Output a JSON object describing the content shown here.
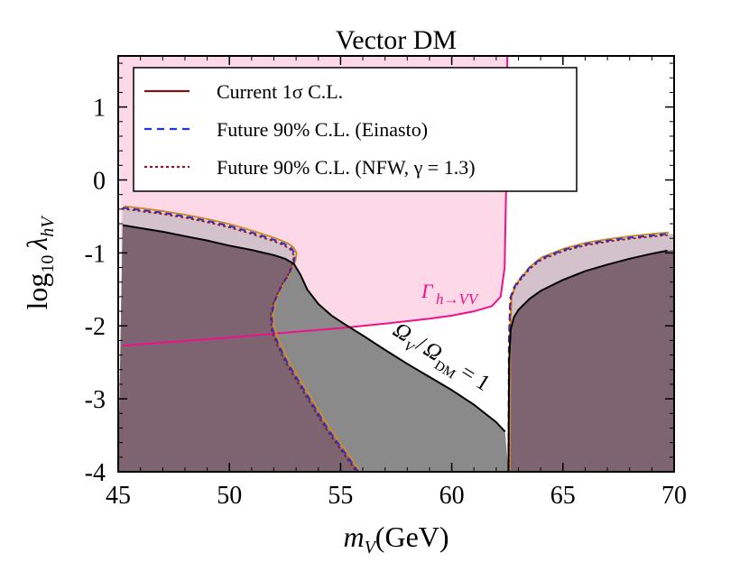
{
  "chart_data": {
    "type": "area",
    "title": "Vector DM",
    "xlabel": "m_V(GeV)",
    "ylabel": "log10 λ_hV",
    "xlim": [
      45,
      70
    ],
    "ylim": [
      -4,
      1.7
    ],
    "xticks": [
      45,
      50,
      55,
      60,
      65,
      70
    ],
    "xtick_labels": [
      "45",
      "50",
      "55",
      "60",
      "65",
      "70"
    ],
    "yticks": [
      -4,
      -3,
      -2,
      -1,
      0,
      1
    ],
    "ytick_labels": [
      "-4",
      "-3",
      "-2",
      "-1",
      "0",
      "1"
    ],
    "legend_position": "top-left",
    "legend": [
      {
        "label": "Current 1σ C.L.",
        "style": "solid",
        "color": "#6e1a1a"
      },
      {
        "label": "Future 90% C.L. (Einasto)",
        "style": "dashed",
        "color": "#2233dd"
      },
      {
        "label": "Future 90% C.L. (NFW, γ = 1.3)",
        "style": "dotted",
        "color": "#8b1a1a"
      }
    ],
    "annotations": {
      "width_label": "Γh→VV",
      "relic_label": "ΩV/ΩDM = 1"
    },
    "colors": {
      "current_region": "#7d6470",
      "future_region": "#d3c1cc",
      "relic_region": "#8a8a8a",
      "higgs_width_region": "#fdd9e8",
      "higgs_width_line": "#ee1188",
      "relic_line": "#000000",
      "future_einasto_line": "#2233dd",
      "future_nfw_line": "#8b1a1a",
      "future_outer_line": "#d08a2a"
    },
    "series": [
      {
        "name": "Current 1σ C.L. (left branch)",
        "points": [
          [
            45.2,
            -0.62
          ],
          [
            46,
            -0.66
          ],
          [
            47,
            -0.71
          ],
          [
            48,
            -0.77
          ],
          [
            49,
            -0.83
          ],
          [
            50,
            -0.9
          ],
          [
            51,
            -0.96
          ],
          [
            52,
            -1.03
          ],
          [
            52.5,
            -1.08
          ],
          [
            52.9,
            -1.15
          ],
          [
            53.2,
            -1.3
          ],
          [
            53.5,
            -1.5
          ],
          [
            54,
            -1.7
          ],
          [
            54.6,
            -1.86
          ],
          [
            55.2,
            -1.98
          ],
          [
            56,
            -2.13
          ],
          [
            57,
            -2.33
          ],
          [
            58,
            -2.52
          ],
          [
            59,
            -2.7
          ],
          [
            60,
            -2.88
          ],
          [
            61,
            -3.08
          ],
          [
            62,
            -3.32
          ],
          [
            62.4,
            -3.45
          ]
        ]
      },
      {
        "name": "Current 1σ C.L. (right branch)",
        "points": [
          [
            62.55,
            -4
          ],
          [
            62.58,
            -2.5
          ],
          [
            62.65,
            -2.05
          ],
          [
            62.8,
            -1.88
          ],
          [
            63,
            -1.78
          ],
          [
            63.5,
            -1.63
          ],
          [
            64,
            -1.52
          ],
          [
            65,
            -1.37
          ],
          [
            66,
            -1.25
          ],
          [
            67,
            -1.16
          ],
          [
            68,
            -1.08
          ],
          [
            69,
            -1.01
          ],
          [
            69.7,
            -0.97
          ]
        ]
      },
      {
        "name": "Future 90% C.L. (left branch)",
        "points": [
          [
            45.2,
            -0.38
          ],
          [
            46,
            -0.41
          ],
          [
            47,
            -0.45
          ],
          [
            48,
            -0.5
          ],
          [
            49,
            -0.56
          ],
          [
            50,
            -0.63
          ],
          [
            51,
            -0.72
          ],
          [
            52,
            -0.82
          ],
          [
            52.5,
            -0.88
          ],
          [
            52.8,
            -0.94
          ],
          [
            52.95,
            -1.02
          ],
          [
            52.9,
            -1.12
          ],
          [
            52.7,
            -1.28
          ],
          [
            52.35,
            -1.45
          ],
          [
            52.05,
            -1.65
          ],
          [
            51.9,
            -1.85
          ],
          [
            51.95,
            -2.05
          ],
          [
            52.2,
            -2.25
          ],
          [
            52.6,
            -2.5
          ],
          [
            53.1,
            -2.75
          ],
          [
            53.7,
            -3.05
          ],
          [
            54.4,
            -3.4
          ],
          [
            55.1,
            -3.7
          ],
          [
            55.8,
            -4
          ]
        ]
      },
      {
        "name": "Future 90% C.L. (right branch)",
        "points": [
          [
            62.55,
            -4
          ],
          [
            62.57,
            -2.2
          ],
          [
            62.63,
            -1.62
          ],
          [
            62.8,
            -1.47
          ],
          [
            63,
            -1.38
          ],
          [
            63.5,
            -1.2
          ],
          [
            64,
            -1.08
          ],
          [
            65,
            -0.96
          ],
          [
            66,
            -0.88
          ],
          [
            67,
            -0.83
          ],
          [
            68,
            -0.79
          ],
          [
            69,
            -0.76
          ],
          [
            69.7,
            -0.74
          ]
        ]
      },
      {
        "name": "Γh→VV bound",
        "points": [
          [
            45.2,
            -2.27
          ],
          [
            47,
            -2.23
          ],
          [
            50,
            -2.16
          ],
          [
            53,
            -2.08
          ],
          [
            55,
            -2.03
          ],
          [
            57,
            -1.97
          ],
          [
            59,
            -1.9
          ],
          [
            60,
            -1.86
          ],
          [
            61,
            -1.8
          ],
          [
            61.8,
            -1.73
          ],
          [
            62.2,
            -1.6
          ],
          [
            62.38,
            -1.2
          ],
          [
            62.45,
            0
          ],
          [
            62.5,
            1.7
          ]
        ]
      }
    ]
  }
}
